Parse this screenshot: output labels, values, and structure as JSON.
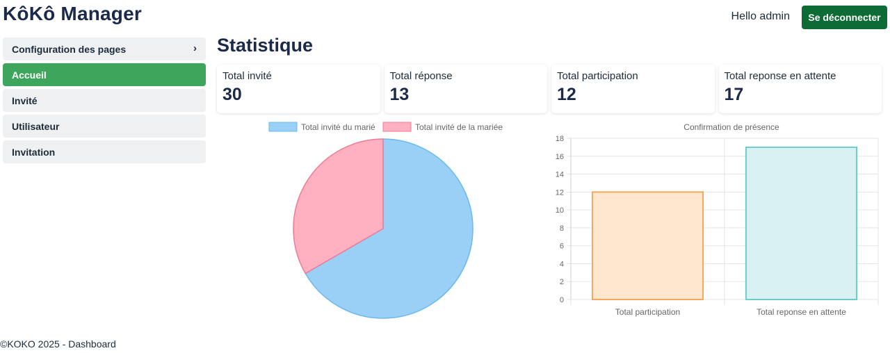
{
  "header": {
    "brand": "KôKô Manager",
    "greeting": "Hello admin",
    "logout_label": "Se déconnecter"
  },
  "sidebar": {
    "items": [
      {
        "label": "Configuration des pages",
        "chevron": "›"
      },
      {
        "label": "Accueil",
        "active": true
      },
      {
        "label": "Invité"
      },
      {
        "label": "Utilisateur"
      },
      {
        "label": "Invitation"
      }
    ]
  },
  "main": {
    "title": "Statistique",
    "cards": [
      {
        "label": "Total invité",
        "value": "30"
      },
      {
        "label": "Total réponse",
        "value": "13"
      },
      {
        "label": "Total participation",
        "value": "12"
      },
      {
        "label": "Total reponse en attente",
        "value": "17"
      }
    ]
  },
  "chart_data": [
    {
      "type": "pie",
      "title": "",
      "labels": [
        "Total invité du marié",
        "Total invité de la mariée"
      ],
      "values": [
        20,
        10
      ],
      "colors": [
        "#9ad0f5",
        "#ffb1c1"
      ],
      "borders": [
        "#6bb8ee",
        "#f07a94"
      ],
      "legend": "top"
    },
    {
      "type": "bar",
      "title": "Confirmation de présence",
      "categories": [
        "Total participation",
        "Total reponse en attente"
      ],
      "values": [
        12,
        17
      ],
      "ylim": [
        0,
        18
      ],
      "yticks": [
        0,
        2,
        4,
        6,
        8,
        10,
        12,
        14,
        16,
        18
      ],
      "colors": [
        "#ffe6ce",
        "#d9f1f2"
      ],
      "borders": [
        "#f4a95a",
        "#6cccc8"
      ],
      "grid": true
    }
  ],
  "footer": {
    "text": "©KOKO 2025 - Dashboard"
  }
}
